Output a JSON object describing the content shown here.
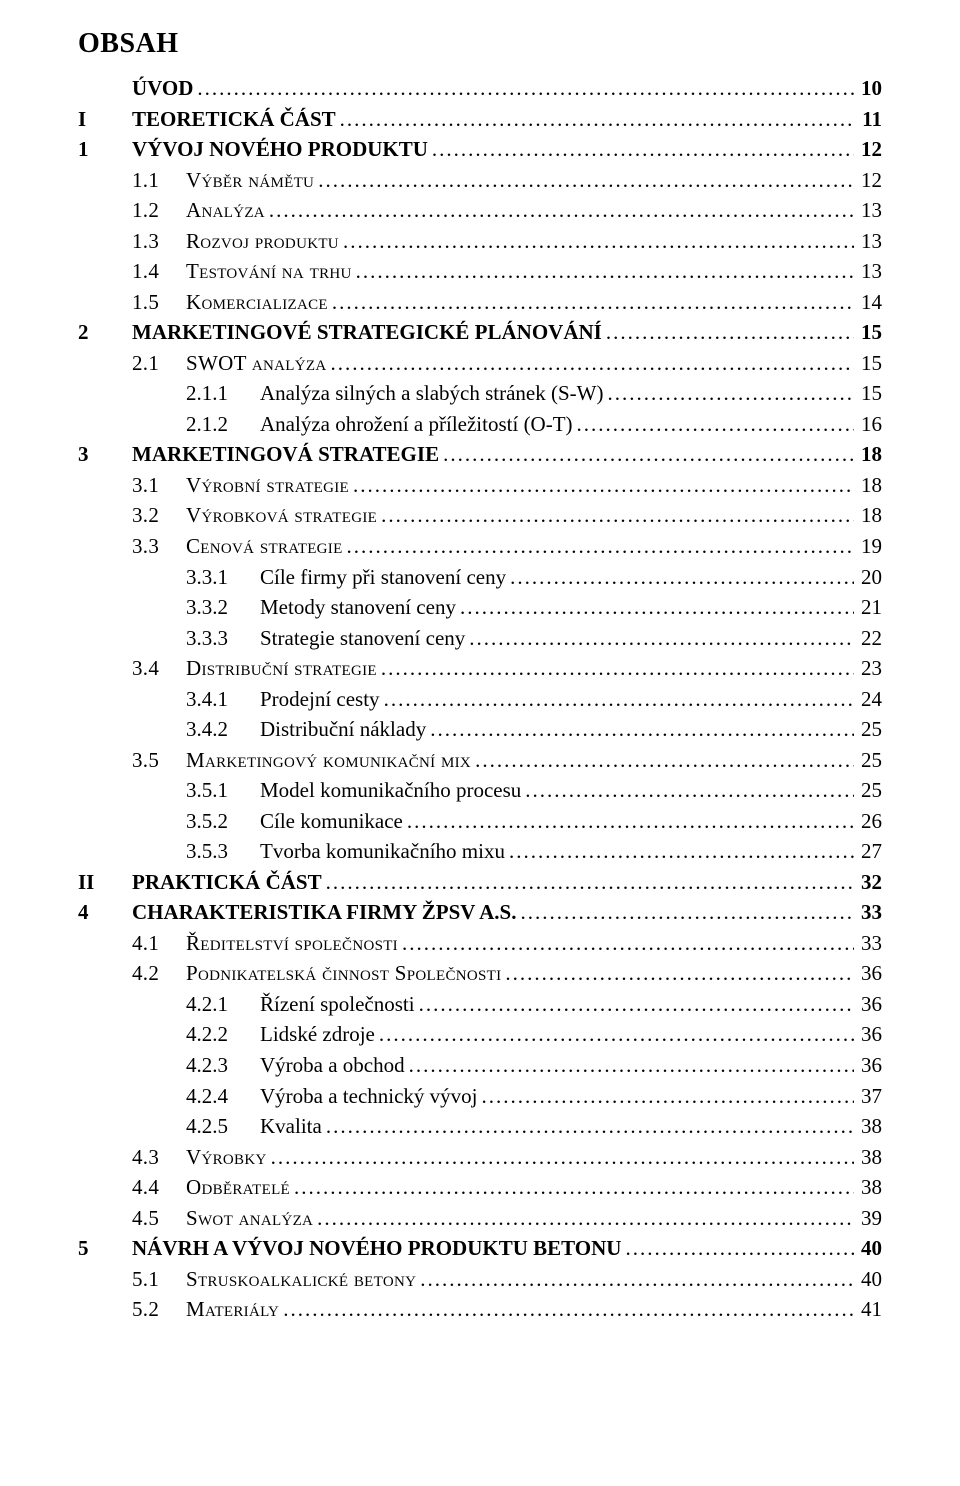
{
  "title": "OBSAH",
  "entries": [
    {
      "level": 0,
      "num": "",
      "label": "ÚVOD",
      "page": "10",
      "bold": true,
      "sc": false
    },
    {
      "level": 0,
      "num": "I",
      "label": "TEORETICKÁ ČÁST",
      "page": "11",
      "bold": true,
      "sc": false
    },
    {
      "level": 0,
      "num": "1",
      "label": "VÝVOJ NOVÉHO PRODUKTU",
      "page": "12",
      "bold": true,
      "sc": false
    },
    {
      "level": 1,
      "num": "1.1",
      "label": "Výběr námětu",
      "page": "12",
      "bold": false,
      "sc": true
    },
    {
      "level": 1,
      "num": "1.2",
      "label": "Analýza",
      "page": "13",
      "bold": false,
      "sc": true
    },
    {
      "level": 1,
      "num": "1.3",
      "label": "Rozvoj produktu",
      "page": "13",
      "bold": false,
      "sc": true
    },
    {
      "level": 1,
      "num": "1.4",
      "label": "Testování na trhu",
      "page": "13",
      "bold": false,
      "sc": true
    },
    {
      "level": 1,
      "num": "1.5",
      "label": "Komercializace",
      "page": "14",
      "bold": false,
      "sc": true
    },
    {
      "level": 0,
      "num": "2",
      "label": "MARKETINGOVÉ STRATEGICKÉ PLÁNOVÁNÍ",
      "page": "15",
      "bold": true,
      "sc": false
    },
    {
      "level": 1,
      "num": "2.1",
      "label": "SWOT analýza",
      "page": "15",
      "bold": false,
      "sc": true
    },
    {
      "level": 2,
      "num": "2.1.1",
      "label": "Analýza silných a slabých stránek (S-W)",
      "page": "15",
      "bold": false,
      "sc": false
    },
    {
      "level": 2,
      "num": "2.1.2",
      "label": "Analýza ohrožení a příležitostí (O-T)",
      "page": "16",
      "bold": false,
      "sc": false
    },
    {
      "level": 0,
      "num": "3",
      "label": "MARKETINGOVÁ STRATEGIE",
      "page": "18",
      "bold": true,
      "sc": false
    },
    {
      "level": 1,
      "num": "3.1",
      "label": "Výrobní strategie",
      "page": "18",
      "bold": false,
      "sc": true
    },
    {
      "level": 1,
      "num": "3.2",
      "label": "Výrobková strategie",
      "page": "18",
      "bold": false,
      "sc": true
    },
    {
      "level": 1,
      "num": "3.3",
      "label": "Cenová strategie",
      "page": "19",
      "bold": false,
      "sc": true
    },
    {
      "level": 2,
      "num": "3.3.1",
      "label": "Cíle firmy při stanovení ceny",
      "page": "20",
      "bold": false,
      "sc": false
    },
    {
      "level": 2,
      "num": "3.3.2",
      "label": "Metody stanovení ceny",
      "page": "21",
      "bold": false,
      "sc": false
    },
    {
      "level": 2,
      "num": "3.3.3",
      "label": "Strategie stanovení ceny",
      "page": "22",
      "bold": false,
      "sc": false
    },
    {
      "level": 1,
      "num": "3.4",
      "label": "Distribuční strategie",
      "page": "23",
      "bold": false,
      "sc": true
    },
    {
      "level": 2,
      "num": "3.4.1",
      "label": "Prodejní cesty",
      "page": "24",
      "bold": false,
      "sc": false
    },
    {
      "level": 2,
      "num": "3.4.2",
      "label": "Distribuční náklady",
      "page": "25",
      "bold": false,
      "sc": false
    },
    {
      "level": 1,
      "num": "3.5",
      "label": "Marketingový komunikační mix",
      "page": "25",
      "bold": false,
      "sc": true
    },
    {
      "level": 2,
      "num": "3.5.1",
      "label": "Model komunikačního procesu",
      "page": "25",
      "bold": false,
      "sc": false
    },
    {
      "level": 2,
      "num": "3.5.2",
      "label": "Cíle komunikace",
      "page": "26",
      "bold": false,
      "sc": false
    },
    {
      "level": 2,
      "num": "3.5.3",
      "label": "Tvorba komunikačního mixu",
      "page": "27",
      "bold": false,
      "sc": false
    },
    {
      "level": 0,
      "num": "II",
      "label": "PRAKTICKÁ ČÁST",
      "page": "32",
      "bold": true,
      "sc": false
    },
    {
      "level": 0,
      "num": "4",
      "label": "CHARAKTERISTIKA FIRMY ŽPSV A.S.",
      "page": "33",
      "bold": true,
      "sc": false
    },
    {
      "level": 1,
      "num": "4.1",
      "label": "Ředitelství společnosti",
      "page": "33",
      "bold": false,
      "sc": true
    },
    {
      "level": 1,
      "num": "4.2",
      "label": "Podnikatelská činnost Společnosti",
      "page": "36",
      "bold": false,
      "sc": true
    },
    {
      "level": 2,
      "num": "4.2.1",
      "label": "Řízení společnosti",
      "page": "36",
      "bold": false,
      "sc": false
    },
    {
      "level": 2,
      "num": "4.2.2",
      "label": "Lidské zdroje",
      "page": "36",
      "bold": false,
      "sc": false
    },
    {
      "level": 2,
      "num": "4.2.3",
      "label": "Výroba a obchod",
      "page": "36",
      "bold": false,
      "sc": false
    },
    {
      "level": 2,
      "num": "4.2.4",
      "label": "Výroba a technický vývoj",
      "page": "37",
      "bold": false,
      "sc": false
    },
    {
      "level": 2,
      "num": "4.2.5",
      "label": "Kvalita",
      "page": "38",
      "bold": false,
      "sc": false
    },
    {
      "level": 1,
      "num": "4.3",
      "label": "Výrobky",
      "page": "38",
      "bold": false,
      "sc": true
    },
    {
      "level": 1,
      "num": "4.4",
      "label": "Odběratelé",
      "page": "38",
      "bold": false,
      "sc": true
    },
    {
      "level": 1,
      "num": "4.5",
      "label": "Swot analýza",
      "page": "39",
      "bold": false,
      "sc": true
    },
    {
      "level": 0,
      "num": "5",
      "label": "NÁVRH A VÝVOJ NOVÉHO PRODUKTU BETONU",
      "page": "40",
      "bold": true,
      "sc": false
    },
    {
      "level": 1,
      "num": "5.1",
      "label": "Struskoalkalické betony",
      "page": "40",
      "bold": false,
      "sc": true
    },
    {
      "level": 1,
      "num": "5.2",
      "label": "Materiály",
      "page": "41",
      "bold": false,
      "sc": true
    }
  ]
}
